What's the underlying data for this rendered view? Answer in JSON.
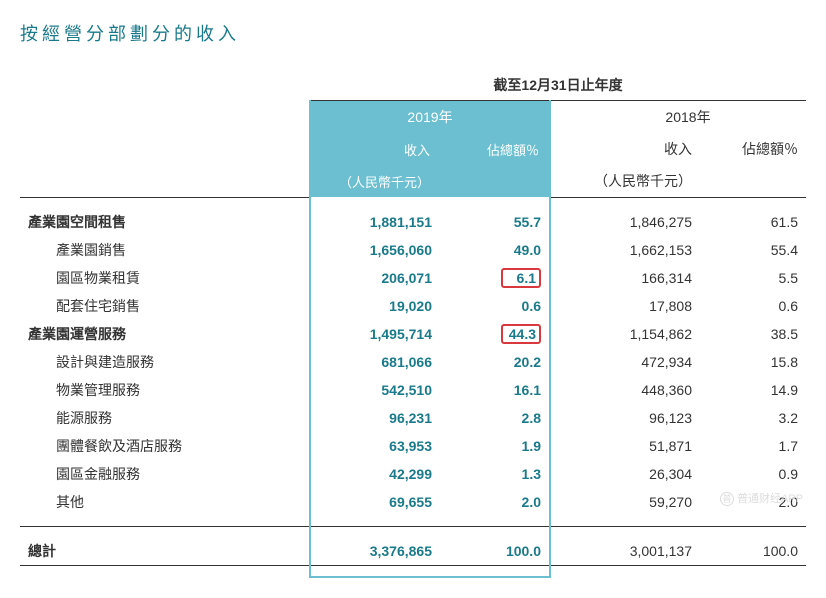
{
  "title": "按經營分部劃分的收入",
  "period_header": "截至12月31日止年度",
  "year_2019": "2019年",
  "year_2018": "2018年",
  "col_revenue": "收入",
  "col_pct": "佔總額％",
  "col_unit": "（人民幣千元）",
  "rows": [
    {
      "label": "產業園空間租售",
      "sub": false,
      "r19": "1,881,151",
      "p19": "55.7",
      "r18": "1,846,275",
      "p18": "61.5",
      "red": false
    },
    {
      "label": "產業園銷售",
      "sub": true,
      "r19": "1,656,060",
      "p19": "49.0",
      "r18": "1,662,153",
      "p18": "55.4",
      "red": false
    },
    {
      "label": "園區物業租賃",
      "sub": true,
      "r19": "206,071",
      "p19": "6.1",
      "r18": "166,314",
      "p18": "5.5",
      "red": true
    },
    {
      "label": "配套住宅銷售",
      "sub": true,
      "r19": "19,020",
      "p19": "0.6",
      "r18": "17,808",
      "p18": "0.6",
      "red": false
    },
    {
      "label": "產業園運營服務",
      "sub": false,
      "r19": "1,495,714",
      "p19": "44.3",
      "r18": "1,154,862",
      "p18": "38.5",
      "red": true
    },
    {
      "label": "設計與建造服務",
      "sub": true,
      "r19": "681,066",
      "p19": "20.2",
      "r18": "472,934",
      "p18": "15.8",
      "red": false
    },
    {
      "label": "物業管理服務",
      "sub": true,
      "r19": "542,510",
      "p19": "16.1",
      "r18": "448,360",
      "p18": "14.9",
      "red": false
    },
    {
      "label": "能源服務",
      "sub": true,
      "r19": "96,231",
      "p19": "2.8",
      "r18": "96,123",
      "p18": "3.2",
      "red": false
    },
    {
      "label": "團體餐飲及酒店服務",
      "sub": true,
      "r19": "63,953",
      "p19": "1.9",
      "r18": "51,871",
      "p18": "1.7",
      "red": false
    },
    {
      "label": "園區金融服務",
      "sub": true,
      "r19": "42,299",
      "p19": "1.3",
      "r18": "26,304",
      "p18": "0.9",
      "red": false
    },
    {
      "label": "其他",
      "sub": true,
      "r19": "69,655",
      "p19": "2.0",
      "r18": "59,270",
      "p18": "2.0",
      "red": false
    }
  ],
  "total_label": "總計",
  "total": {
    "r19": "3,376,865",
    "p19": "100.0",
    "r18": "3,001,137",
    "p18": "100.0"
  },
  "watermark": "普通财经APP",
  "colors": {
    "title": "#1a7a8c",
    "accent": "#1a7a8c",
    "header_bg": "#6bbfd0",
    "red": "#d9393e",
    "text": "#333333"
  }
}
